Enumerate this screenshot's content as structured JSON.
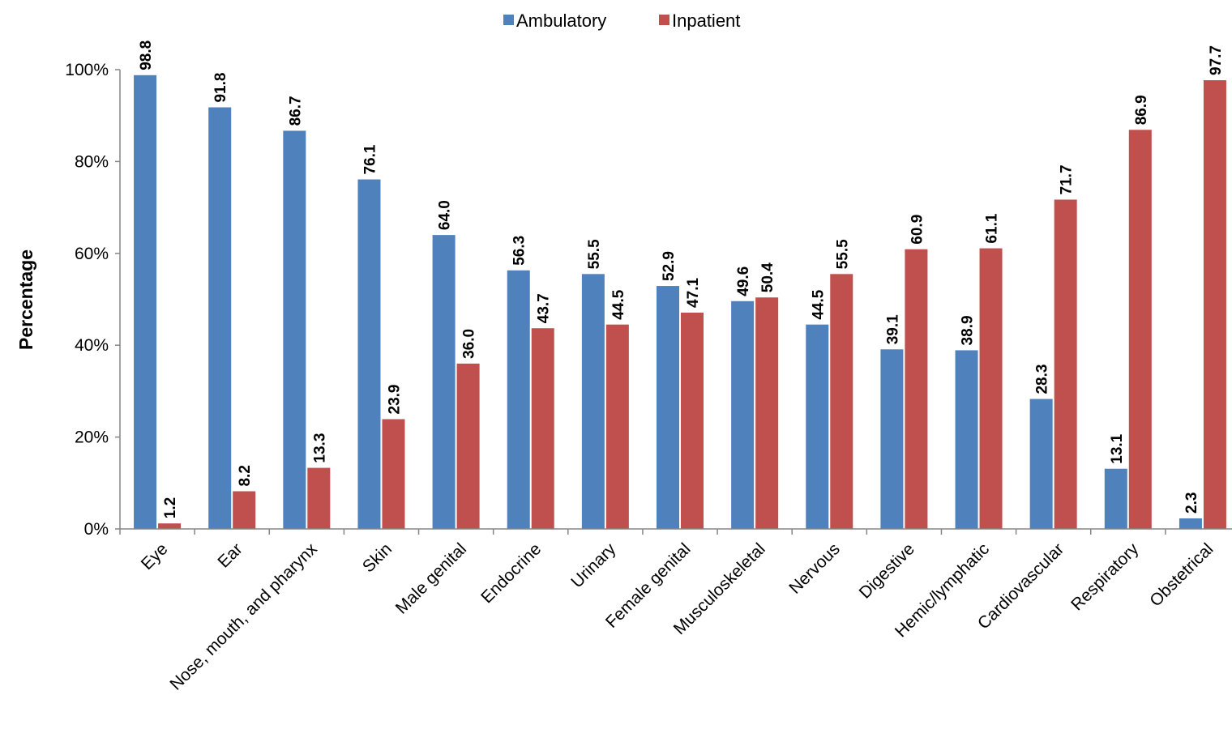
{
  "chart_data": {
    "type": "bar",
    "title": "",
    "xlabel": "",
    "ylabel": "Percentage",
    "ylim": [
      0,
      100
    ],
    "yticks": [
      "0%",
      "20%",
      "40%",
      "60%",
      "80%",
      "100%"
    ],
    "legend_position": "top",
    "grid": false,
    "categories": [
      "Eye",
      "Ear",
      "Nose, mouth, and pharynx",
      "Skin",
      "Male genital",
      "Endocrine",
      "Urinary",
      "Female genital",
      "Musculoskeletal",
      "Nervous",
      "Digestive",
      "Hemic/lymphatic",
      "Cardiovascular",
      "Respiratory",
      "Obstetrical"
    ],
    "series": [
      {
        "name": "Ambulatory",
        "color": "#4F81BD",
        "values": [
          98.8,
          91.8,
          86.7,
          76.1,
          64.0,
          56.3,
          55.5,
          52.9,
          49.6,
          44.5,
          39.1,
          38.9,
          28.3,
          13.1,
          2.3
        ],
        "labels": [
          "98.8",
          "91.8",
          "86.7",
          "76.1",
          "64.0",
          "56.3",
          "55.5",
          "52.9",
          "49.6",
          "44.5",
          "39.1",
          "38.9",
          "28.3",
          "13.1",
          "2.3"
        ]
      },
      {
        "name": "Inpatient",
        "color": "#C0504D",
        "values": [
          1.2,
          8.2,
          13.3,
          23.9,
          36.0,
          43.7,
          44.5,
          47.1,
          50.4,
          55.5,
          60.9,
          61.1,
          71.7,
          86.9,
          97.7
        ],
        "labels": [
          "1.2",
          "8.2",
          "13.3",
          "23.9",
          "36.0",
          "43.7",
          "44.5",
          "47.1",
          "50.4",
          "55.5",
          "60.9",
          "61.1",
          "71.7",
          "86.9",
          "97.7"
        ]
      }
    ]
  }
}
